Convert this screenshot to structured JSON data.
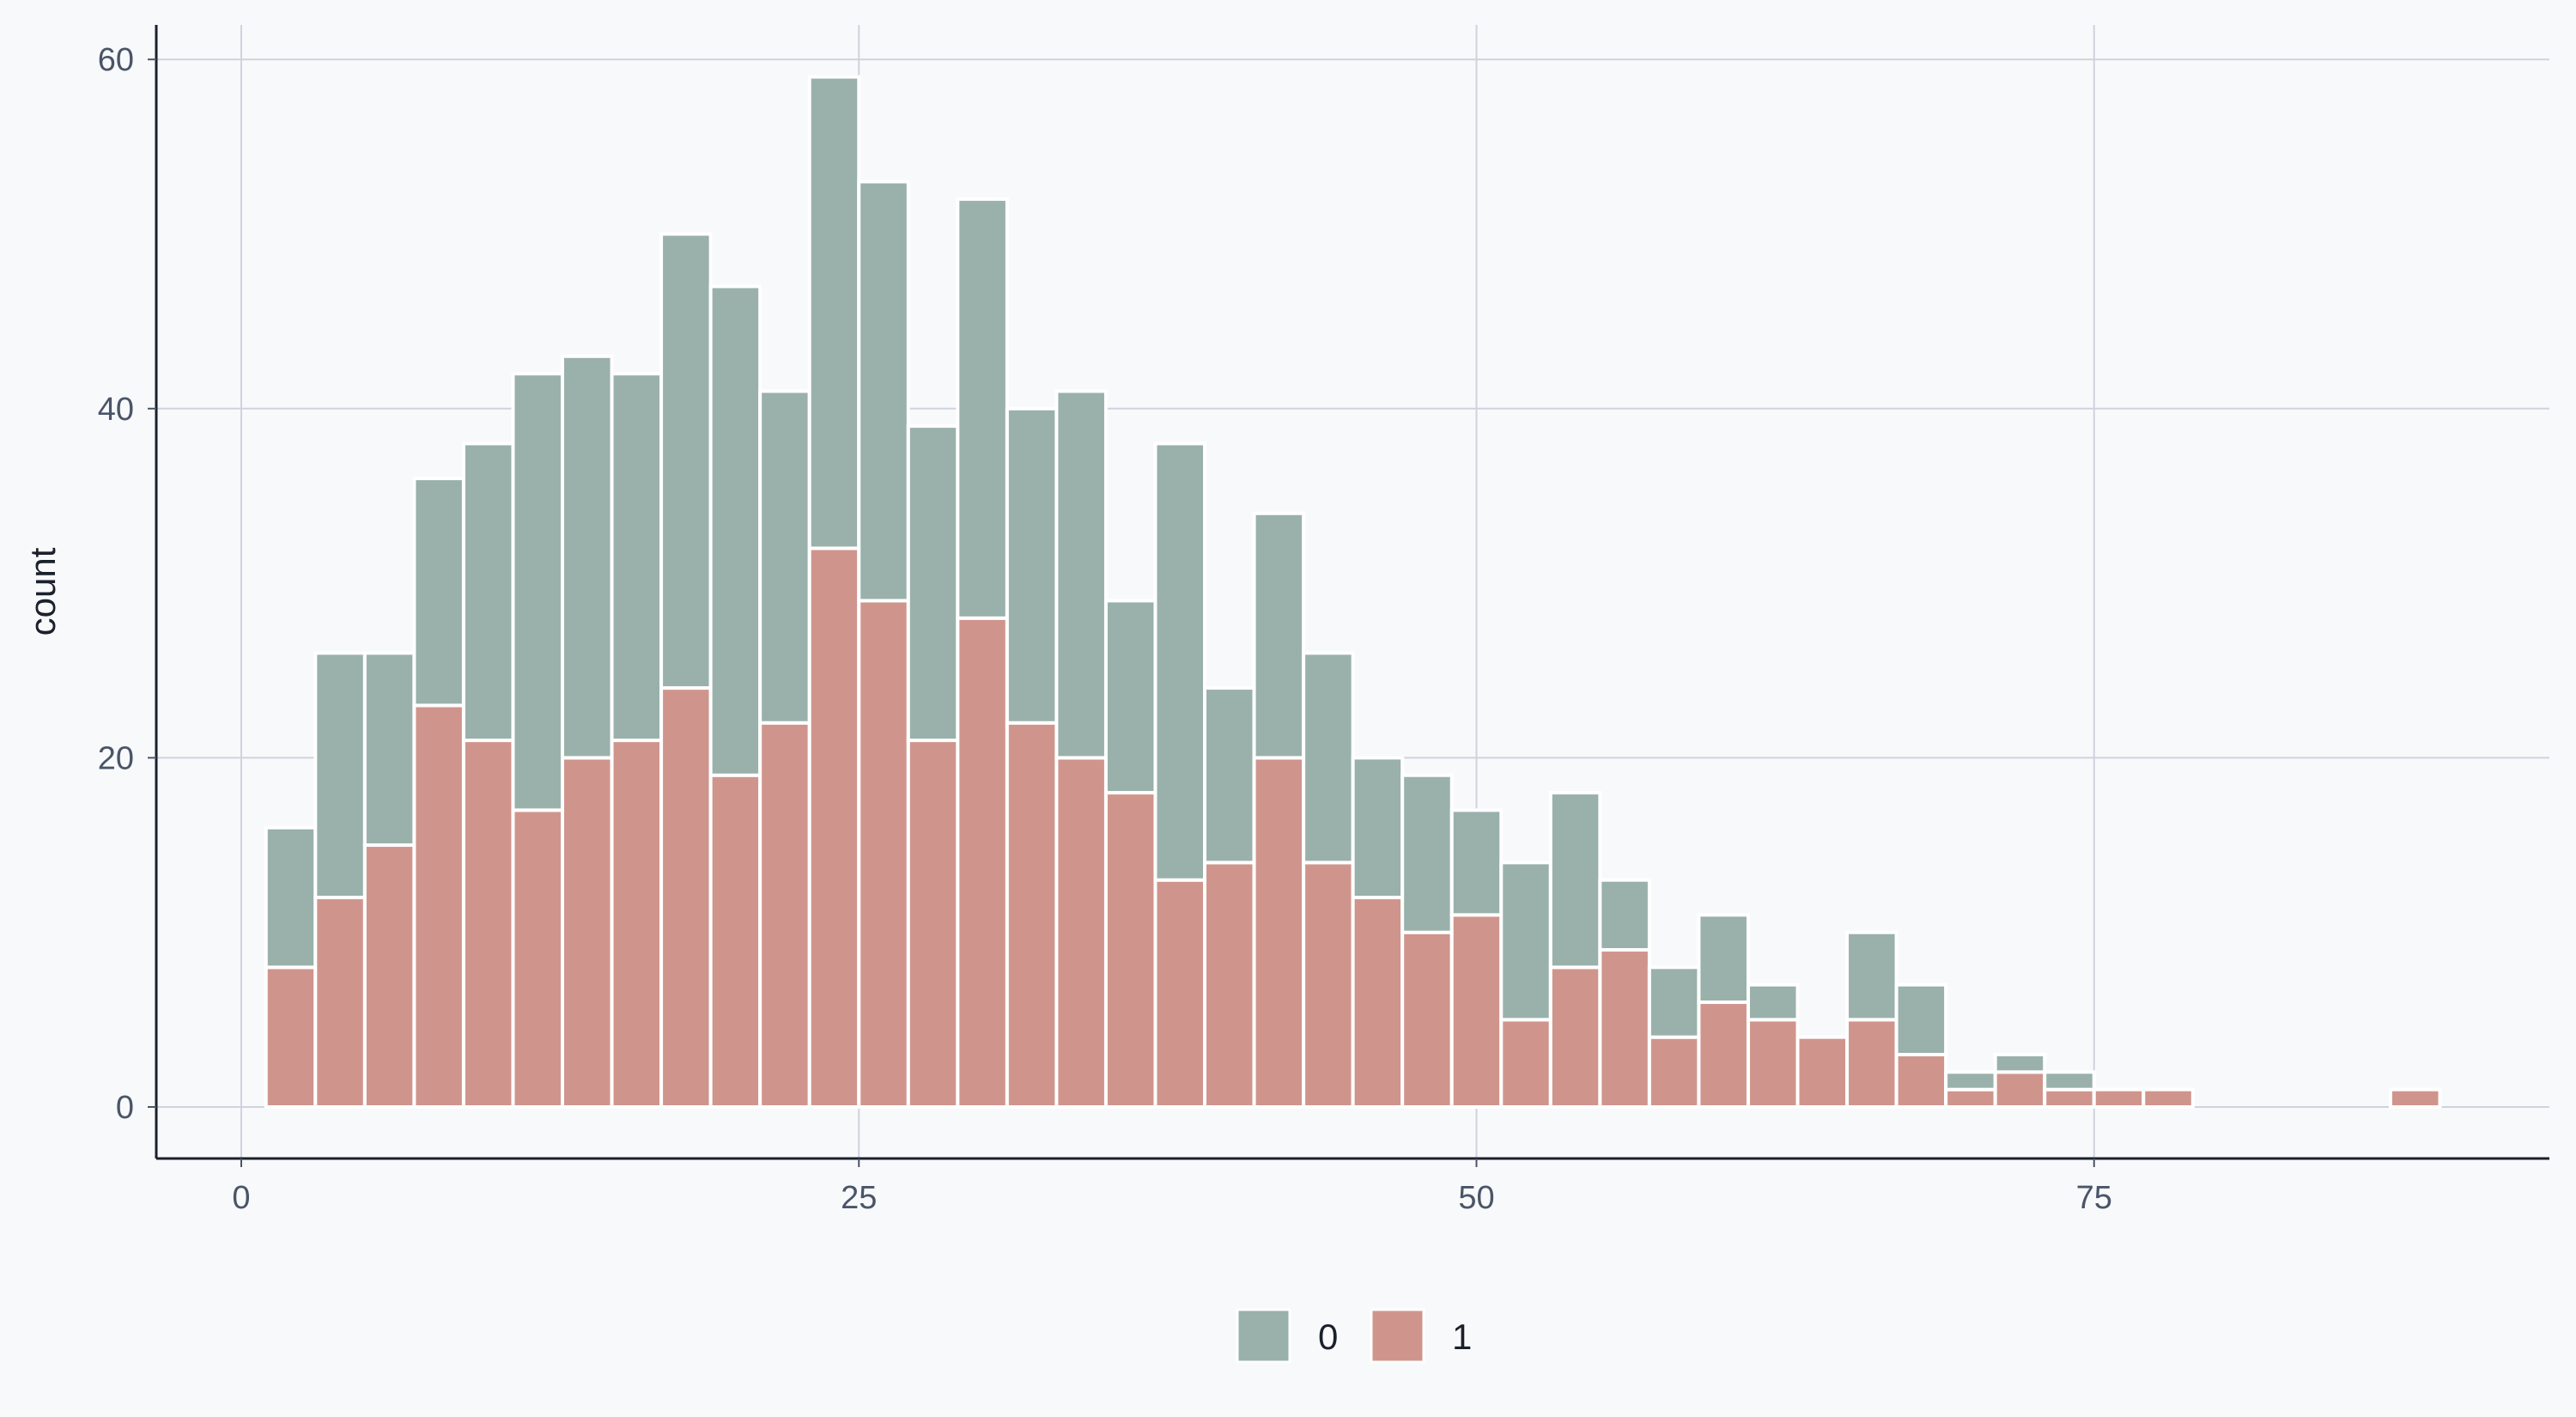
{
  "chart_data": {
    "type": "bar",
    "stacked": true,
    "title": "",
    "xlabel": "",
    "ylabel": "count",
    "bin_width": 2,
    "x": [
      0,
      2,
      4,
      6,
      8,
      10,
      12,
      14,
      16,
      18,
      20,
      22,
      24,
      26,
      28,
      30,
      32,
      34,
      36,
      38,
      40,
      42,
      44,
      46,
      48,
      50,
      52,
      54,
      56,
      58,
      60,
      62,
      64,
      66,
      68,
      70,
      72,
      74,
      76,
      78,
      80,
      82,
      84,
      86,
      88
    ],
    "series": [
      {
        "name": "0",
        "color": "#99b1aa",
        "values": [
          0,
          8,
          14,
          11,
          13,
          17,
          25,
          23,
          21,
          26,
          28,
          19,
          27,
          24,
          18,
          24,
          18,
          21,
          11,
          25,
          10,
          14,
          12,
          8,
          9,
          6,
          9,
          10,
          4,
          4,
          5,
          2,
          0,
          5,
          4,
          1,
          1,
          1,
          0,
          0,
          0,
          0,
          0,
          0,
          0
        ]
      },
      {
        "name": "1",
        "color": "#cf958d",
        "values": [
          0,
          8,
          12,
          15,
          23,
          21,
          17,
          20,
          21,
          24,
          19,
          22,
          32,
          29,
          21,
          28,
          22,
          20,
          18,
          13,
          14,
          20,
          14,
          12,
          10,
          11,
          5,
          8,
          9,
          4,
          6,
          5,
          4,
          5,
          3,
          1,
          2,
          1,
          1,
          1,
          0,
          0,
          0,
          0,
          1
        ]
      }
    ],
    "xlim": [
      -3.5,
      93.5
    ],
    "ylim": [
      -3,
      62
    ],
    "xticks": [
      "0",
      "25",
      "50",
      "75"
    ],
    "xtick_values": [
      0,
      25,
      50,
      75
    ],
    "yticks": [
      "0",
      "20",
      "40",
      "60"
    ],
    "ytick_values": [
      0,
      20,
      40,
      60
    ],
    "grid": true,
    "legend": {
      "position": "bottom",
      "entries": [
        "0",
        "1"
      ]
    }
  }
}
